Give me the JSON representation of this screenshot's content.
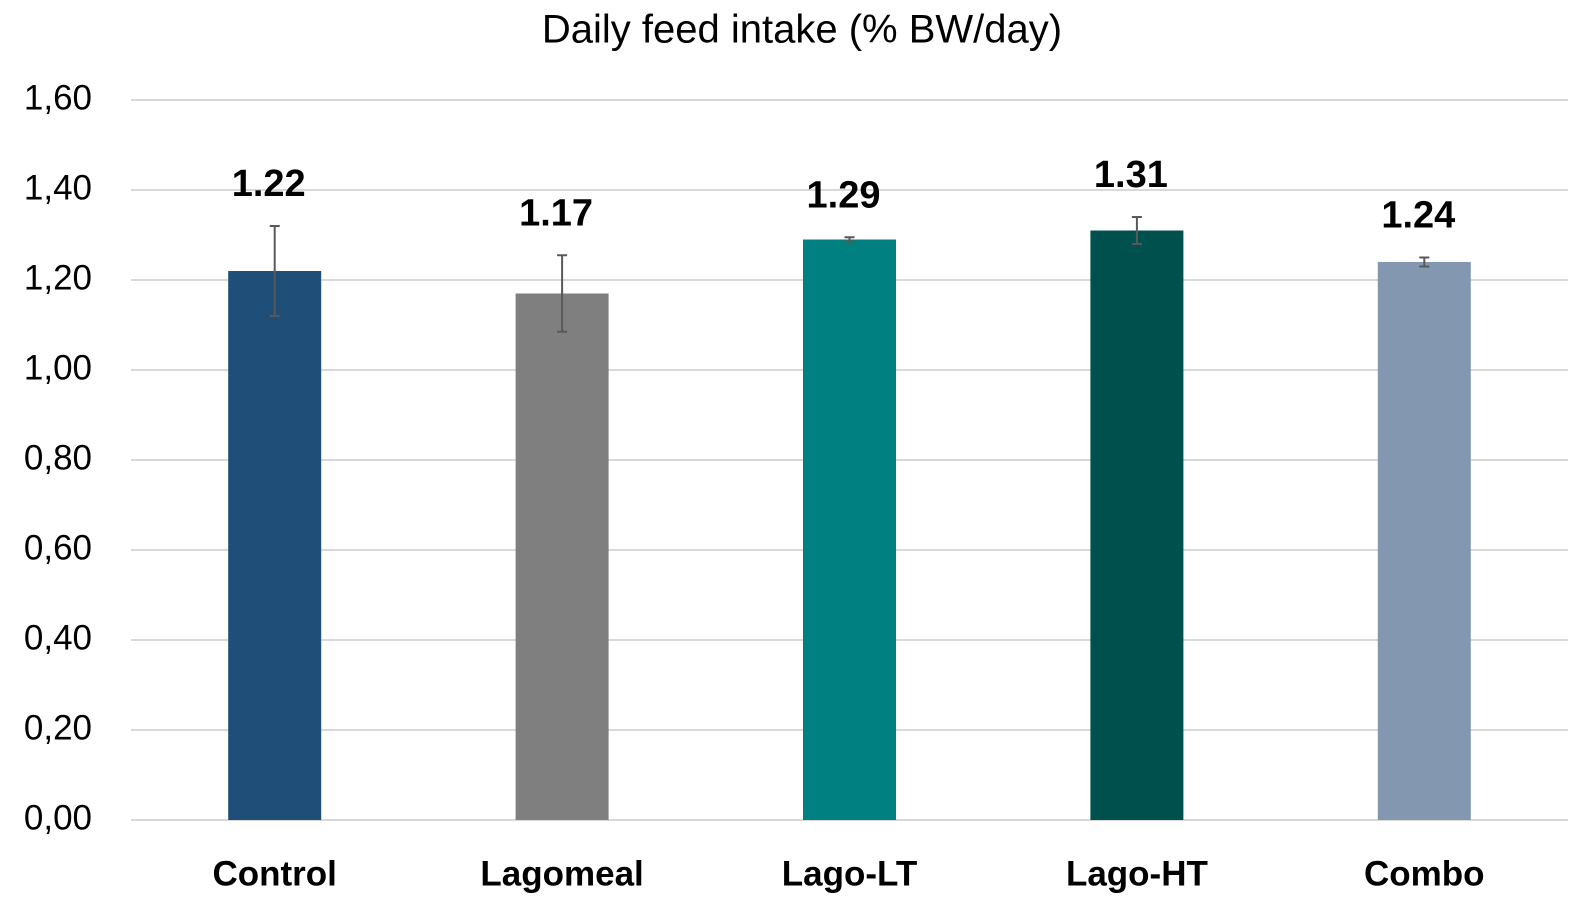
{
  "chart_data": {
    "type": "bar",
    "title": "Daily feed intake (% BW/day)",
    "categories": [
      "Control",
      "Lagomeal",
      "Lago-LT",
      "Lago-HT",
      "Combo"
    ],
    "values": [
      1.22,
      1.17,
      1.29,
      1.31,
      1.24
    ],
    "errors": [
      0.1,
      0.085,
      0.005,
      0.03,
      0.01
    ],
    "colors": [
      "#1f4e79",
      "#7f7f7f",
      "#008080",
      "#00514d",
      "#8497b0"
    ],
    "ylim": [
      0,
      1.6
    ],
    "yticks": [
      {
        "value": 0,
        "label": "0,00"
      },
      {
        "value": 0.2,
        "label": "0,20"
      },
      {
        "value": 0.4,
        "label": "0,40"
      },
      {
        "value": 0.6,
        "label": "0,60"
      },
      {
        "value": 0.8,
        "label": "0,80"
      },
      {
        "value": 1.0,
        "label": "1,00"
      },
      {
        "value": 1.2,
        "label": "1,20"
      },
      {
        "value": 1.4,
        "label": "1,40"
      },
      {
        "value": 1.6,
        "label": "1,60"
      }
    ],
    "grid": true
  }
}
